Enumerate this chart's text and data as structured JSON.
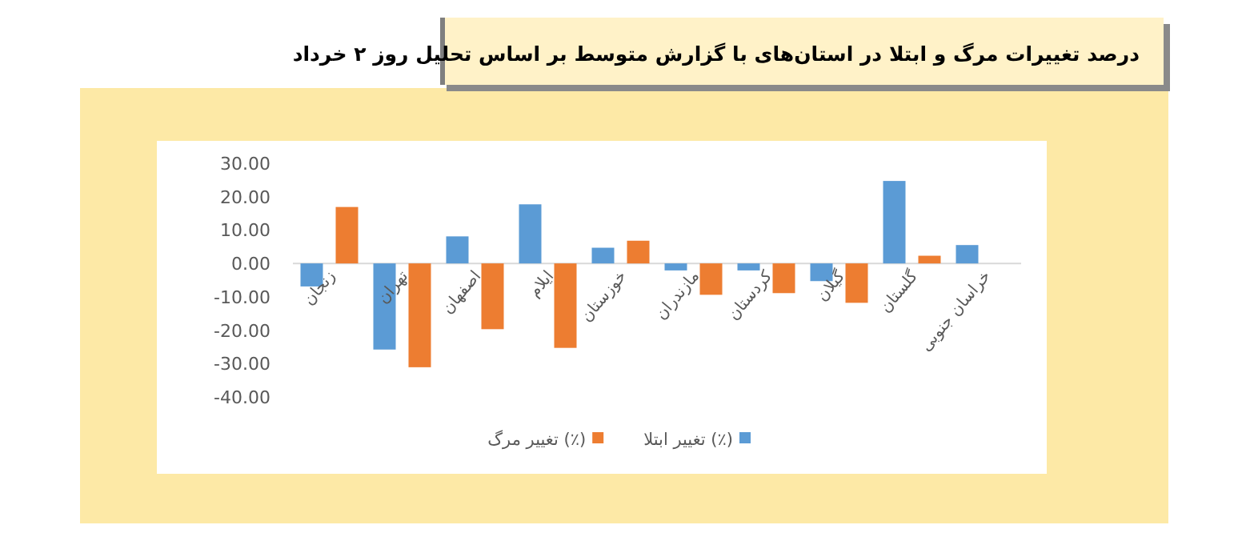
{
  "chart_data": {
    "type": "bar",
    "title": "درصد تغییرات مرگ و ابتلا در استان‌های با گزارش متوسط بر اساس تحلیل روز ۲ خرداد",
    "categories": [
      "زنجان",
      "تهران",
      "اصفهان",
      "ایلام",
      "خوزستان",
      "مازندران",
      "کردستان",
      "گیلان",
      "گلستان",
      "خراسان جنوبی"
    ],
    "series": [
      {
        "name": "تغییر ابتلا (٪)",
        "color": "#5b9bd5",
        "values": [
          -6.9,
          -25.8,
          8.1,
          17.7,
          4.7,
          -2.1,
          -2.1,
          -5.3,
          24.7,
          5.5
        ]
      },
      {
        "name": "تغییر مرگ (٪)",
        "color": "#ed7d31",
        "values": [
          16.9,
          -31.1,
          -19.7,
          -25.3,
          6.8,
          -9.4,
          -8.9,
          -11.8,
          2.3,
          null
        ]
      }
    ],
    "ylim": [
      -40,
      30
    ],
    "yticks": [
      {
        "value": 30,
        "label": "30.00"
      },
      {
        "value": 20,
        "label": "20.00"
      },
      {
        "value": 10,
        "label": "10.00"
      },
      {
        "value": 0,
        "label": "0.00"
      },
      {
        "value": -10,
        "label": "-10.00"
      },
      {
        "value": -20,
        "label": "-20.00"
      },
      {
        "value": -30,
        "label": "-30.00"
      },
      {
        "value": -40,
        "label": "-40.00"
      }
    ],
    "legend": "bottom"
  }
}
